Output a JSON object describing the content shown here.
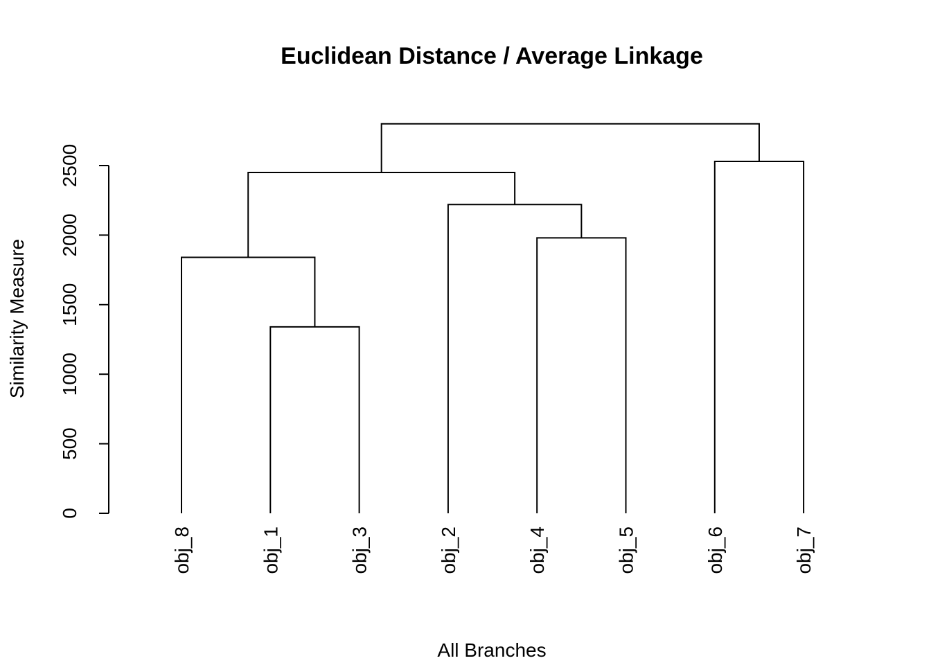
{
  "chart_data": {
    "type": "dendrogram",
    "title": "Euclidean Distance / Average Linkage",
    "xlabel": "All Branches",
    "ylabel": "Similarity Measure",
    "ylim": [
      0,
      2800
    ],
    "y_ticks": [
      0,
      500,
      1000,
      1500,
      2000,
      2500
    ],
    "leaves": [
      "obj_8",
      "obj_1",
      "obj_3",
      "obj_2",
      "obj_4",
      "obj_5",
      "obj_6",
      "obj_7"
    ],
    "merges": [
      {
        "id": "m1",
        "left": "obj_1",
        "right": "obj_3",
        "height": 1340
      },
      {
        "id": "m2",
        "left": "obj_8",
        "right": "m1",
        "height": 1840
      },
      {
        "id": "m3",
        "left": "obj_4",
        "right": "obj_5",
        "height": 1980
      },
      {
        "id": "m4",
        "left": "obj_2",
        "right": "m3",
        "height": 2220
      },
      {
        "id": "m5",
        "left": "m2",
        "right": "m4",
        "height": 2450
      },
      {
        "id": "m6",
        "left": "obj_6",
        "right": "obj_7",
        "height": 2530
      },
      {
        "id": "m7",
        "left": "m5",
        "right": "m6",
        "height": 2800
      }
    ],
    "grid": false,
    "legend": "none"
  }
}
